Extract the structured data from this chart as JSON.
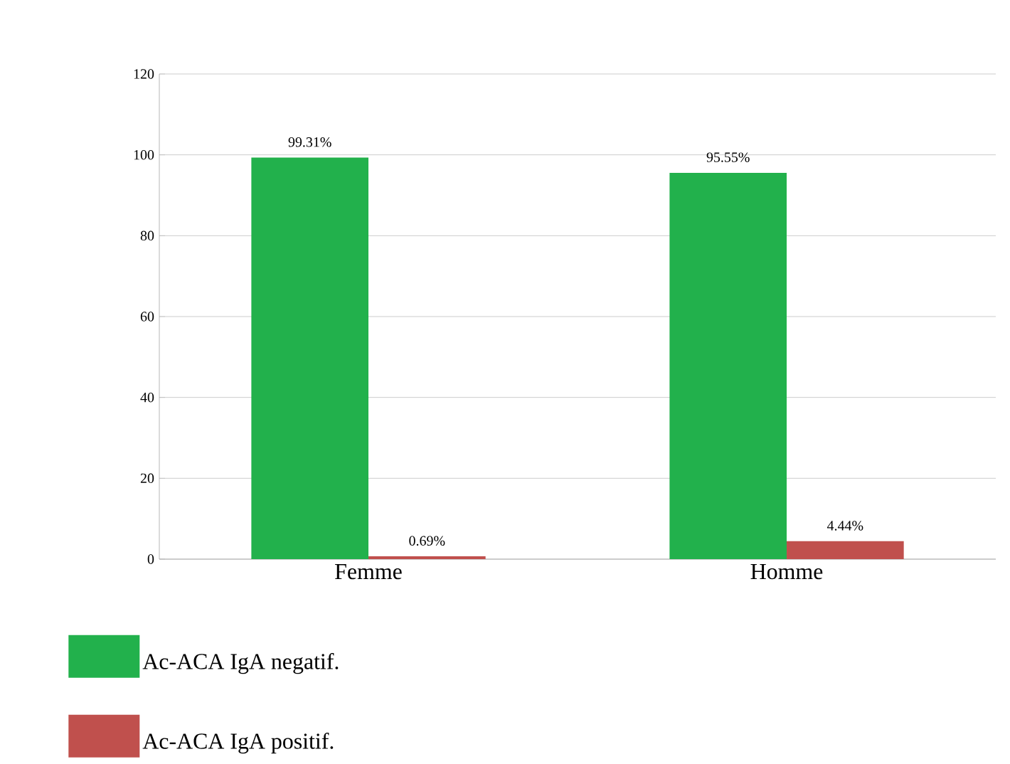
{
  "chart_data": {
    "type": "bar",
    "categories": [
      "Femme",
      "Homme"
    ],
    "series": [
      {
        "name": "Ac-ACA IgA negatif.",
        "color": "#22b14c",
        "values": [
          99.31,
          95.55
        ],
        "value_labels": [
          "99.31%",
          "95.55%"
        ]
      },
      {
        "name": "Ac-ACA IgA positif.",
        "color": "#c0504d",
        "values": [
          0.69,
          4.44
        ],
        "value_labels": [
          "0.69%",
          "4.44%"
        ]
      }
    ],
    "ylim": [
      0,
      120
    ],
    "yticks": [
      0,
      20,
      40,
      60,
      80,
      100,
      120
    ],
    "grid": "y",
    "legend": "bottom left"
  }
}
